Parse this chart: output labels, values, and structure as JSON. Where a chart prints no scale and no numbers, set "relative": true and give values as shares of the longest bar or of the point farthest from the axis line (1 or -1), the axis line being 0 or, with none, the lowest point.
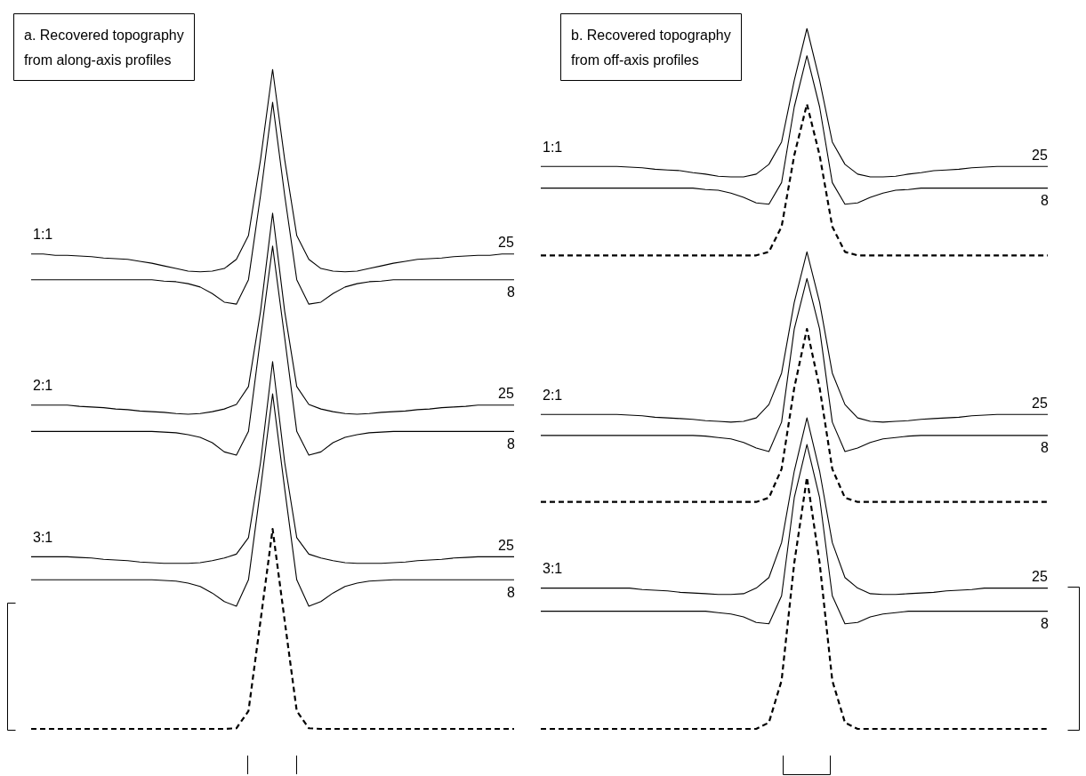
{
  "chart_data": [
    {
      "type": "line",
      "title": "a. Recovered topography\nfrom along-axis profiles",
      "relative": true,
      "marker": "none",
      "line_style": "solid",
      "categories": [
        null,
        null,
        null,
        null,
        null,
        null,
        null,
        null,
        null,
        null,
        null,
        null,
        null,
        null,
        null,
        null,
        null,
        null,
        null,
        null,
        null,
        null,
        null,
        null,
        null,
        null,
        null,
        null,
        null,
        null,
        null,
        null,
        null,
        null,
        null,
        null,
        null,
        null,
        null,
        null,
        null
      ],
      "annotations": [
        {
          "text": "1:1",
          "y": 0.72
        },
        {
          "text": "2:1",
          "y": 0.491
        },
        {
          "text": "3:1",
          "y": 0.261
        }
      ],
      "series": [
        {
          "name": "25",
          "color": "#000000",
          "values": [
            0.72,
            0.72,
            0.718,
            0.718,
            0.717,
            0.716,
            0.714,
            0.713,
            0.712,
            0.709,
            0.706,
            0.702,
            0.698,
            0.694,
            0.693,
            0.694,
            0.698,
            0.712,
            0.748,
            0.863,
            1,
            0.863,
            0.748,
            0.712,
            0.698,
            0.694,
            0.693,
            0.694,
            0.698,
            0.702,
            0.706,
            0.709,
            0.712,
            0.713,
            0.714,
            0.716,
            0.717,
            0.718,
            0.718,
            0.72,
            0.72
          ]
        },
        {
          "name": "8",
          "color": "#000000",
          "values": [
            0.681,
            0.681,
            0.681,
            0.681,
            0.681,
            0.681,
            0.681,
            0.681,
            0.681,
            0.681,
            0.681,
            0.679,
            0.678,
            0.675,
            0.67,
            0.66,
            0.647,
            0.644,
            0.681,
            0.809,
            0.95,
            0.809,
            0.681,
            0.644,
            0.647,
            0.66,
            0.67,
            0.675,
            0.678,
            0.679,
            0.681,
            0.681,
            0.681,
            0.681,
            0.681,
            0.681,
            0.681,
            0.681,
            0.681,
            0.681,
            0.681
          ]
        },
        {
          "name": "25",
          "color": "#000000",
          "values": [
            0.491,
            0.491,
            0.491,
            0.491,
            0.489,
            0.488,
            0.487,
            0.485,
            0.484,
            0.482,
            0.481,
            0.48,
            0.478,
            0.477,
            0.478,
            0.481,
            0.485,
            0.492,
            0.519,
            0.633,
            0.782,
            0.633,
            0.519,
            0.492,
            0.485,
            0.481,
            0.478,
            0.477,
            0.478,
            0.48,
            0.481,
            0.482,
            0.484,
            0.485,
            0.487,
            0.488,
            0.489,
            0.491,
            0.491,
            0.491,
            0.491
          ]
        },
        {
          "name": "8",
          "color": "#000000",
          "values": [
            0.451,
            0.451,
            0.451,
            0.451,
            0.451,
            0.451,
            0.451,
            0.451,
            0.451,
            0.451,
            0.451,
            0.45,
            0.449,
            0.446,
            0.442,
            0.434,
            0.42,
            0.415,
            0.451,
            0.593,
            0.732,
            0.593,
            0.451,
            0.415,
            0.42,
            0.434,
            0.442,
            0.446,
            0.449,
            0.45,
            0.451,
            0.451,
            0.451,
            0.451,
            0.451,
            0.451,
            0.451,
            0.451,
            0.451,
            0.451,
            0.451
          ]
        },
        {
          "name": "25",
          "color": "#000000",
          "values": [
            0.261,
            0.261,
            0.261,
            0.261,
            0.26,
            0.259,
            0.257,
            0.256,
            0.255,
            0.253,
            0.252,
            0.251,
            0.251,
            0.251,
            0.252,
            0.255,
            0.259,
            0.265,
            0.29,
            0.404,
            0.557,
            0.404,
            0.29,
            0.265,
            0.259,
            0.255,
            0.252,
            0.251,
            0.251,
            0.251,
            0.252,
            0.253,
            0.255,
            0.256,
            0.257,
            0.259,
            0.26,
            0.261,
            0.261,
            0.261,
            0.261
          ]
        },
        {
          "name": "8",
          "color": "#000000",
          "values": [
            0.226,
            0.226,
            0.226,
            0.226,
            0.226,
            0.226,
            0.226,
            0.226,
            0.226,
            0.226,
            0.226,
            0.225,
            0.224,
            0.221,
            0.216,
            0.206,
            0.193,
            0.186,
            0.226,
            0.364,
            0.508,
            0.364,
            0.226,
            0.186,
            0.193,
            0.206,
            0.216,
            0.221,
            0.224,
            0.225,
            0.226,
            0.226,
            0.226,
            0.226,
            0.226,
            0.226,
            0.226,
            0.226,
            0.226,
            0.226,
            0.226
          ]
        },
        {
          "color": "#000000",
          "line_style": "dashed",
          "values": [
            0,
            0,
            0,
            0,
            0,
            0,
            0,
            0,
            0,
            0,
            0,
            0,
            0,
            0,
            0,
            0,
            0,
            0.001,
            0.027,
            0.164,
            0.303,
            0.164,
            0.027,
            0.001,
            0,
            0,
            0,
            0,
            0,
            0,
            0,
            0,
            0,
            0,
            0,
            0,
            0,
            0,
            0,
            0,
            0
          ]
        }
      ]
    },
    {
      "type": "line",
      "title": "b. Recovered topography\nfrom off-axis profiles",
      "relative": true,
      "marker": "none",
      "line_style": "solid",
      "categories": [
        null,
        null,
        null,
        null,
        null,
        null,
        null,
        null,
        null,
        null,
        null,
        null,
        null,
        null,
        null,
        null,
        null,
        null,
        null,
        null,
        null,
        null,
        null,
        null,
        null,
        null,
        null,
        null,
        null,
        null,
        null,
        null,
        null,
        null,
        null,
        null,
        null,
        null,
        null,
        null,
        null
      ],
      "annotations": [
        {
          "text": "1:1",
          "y": 0.803
        },
        {
          "text": "2:1",
          "y": 0.449
        },
        {
          "text": "3:1",
          "y": 0.201
        }
      ],
      "series": [
        {
          "name": "25",
          "color": "#000000",
          "values": [
            0.803,
            0.803,
            0.803,
            0.803,
            0.803,
            0.803,
            0.803,
            0.802,
            0.801,
            0.799,
            0.798,
            0.797,
            0.794,
            0.792,
            0.789,
            0.788,
            0.788,
            0.792,
            0.806,
            0.838,
            0.926,
            1,
            0.926,
            0.838,
            0.806,
            0.792,
            0.788,
            0.788,
            0.789,
            0.792,
            0.794,
            0.797,
            0.798,
            0.799,
            0.801,
            0.802,
            0.803,
            0.803,
            0.803,
            0.803,
            0.803
          ]
        },
        {
          "name": "8",
          "color": "#000000",
          "values": [
            0.772,
            0.772,
            0.772,
            0.772,
            0.772,
            0.772,
            0.772,
            0.772,
            0.772,
            0.772,
            0.772,
            0.772,
            0.772,
            0.77,
            0.769,
            0.765,
            0.759,
            0.751,
            0.749,
            0.78,
            0.888,
            0.961,
            0.888,
            0.78,
            0.749,
            0.751,
            0.759,
            0.765,
            0.769,
            0.77,
            0.772,
            0.772,
            0.772,
            0.772,
            0.772,
            0.772,
            0.772,
            0.772,
            0.772,
            0.772,
            0.772
          ]
        },
        {
          "color": "#000000",
          "line_style": "dashed",
          "values": [
            0.676,
            0.676,
            0.676,
            0.676,
            0.676,
            0.676,
            0.676,
            0.676,
            0.676,
            0.676,
            0.676,
            0.676,
            0.676,
            0.676,
            0.676,
            0.676,
            0.676,
            0.676,
            0.681,
            0.717,
            0.819,
            0.892,
            0.819,
            0.717,
            0.681,
            0.676,
            0.676,
            0.676,
            0.676,
            0.676,
            0.676,
            0.676,
            0.676,
            0.676,
            0.676,
            0.676,
            0.676,
            0.676,
            0.676,
            0.676,
            0.676
          ]
        },
        {
          "name": "25",
          "color": "#000000",
          "values": [
            0.449,
            0.449,
            0.449,
            0.449,
            0.449,
            0.449,
            0.449,
            0.448,
            0.447,
            0.445,
            0.444,
            0.443,
            0.442,
            0.44,
            0.439,
            0.438,
            0.439,
            0.444,
            0.463,
            0.508,
            0.609,
            0.681,
            0.609,
            0.508,
            0.463,
            0.444,
            0.439,
            0.438,
            0.439,
            0.44,
            0.442,
            0.443,
            0.444,
            0.445,
            0.447,
            0.448,
            0.449,
            0.449,
            0.449,
            0.449,
            0.449
          ]
        },
        {
          "name": "8",
          "color": "#000000",
          "values": [
            0.419,
            0.419,
            0.419,
            0.419,
            0.419,
            0.419,
            0.419,
            0.419,
            0.419,
            0.419,
            0.419,
            0.419,
            0.419,
            0.418,
            0.416,
            0.414,
            0.409,
            0.401,
            0.396,
            0.438,
            0.571,
            0.643,
            0.571,
            0.438,
            0.396,
            0.401,
            0.409,
            0.414,
            0.416,
            0.418,
            0.419,
            0.419,
            0.419,
            0.419,
            0.419,
            0.419,
            0.419,
            0.419,
            0.419,
            0.419,
            0.419
          ]
        },
        {
          "color": "#000000",
          "line_style": "dashed",
          "values": [
            0.324,
            0.324,
            0.324,
            0.324,
            0.324,
            0.324,
            0.324,
            0.324,
            0.324,
            0.324,
            0.324,
            0.324,
            0.324,
            0.324,
            0.324,
            0.324,
            0.324,
            0.324,
            0.33,
            0.371,
            0.487,
            0.571,
            0.487,
            0.371,
            0.33,
            0.324,
            0.324,
            0.324,
            0.324,
            0.324,
            0.324,
            0.324,
            0.324,
            0.324,
            0.324,
            0.324,
            0.324,
            0.324,
            0.324,
            0.324,
            0.324
          ]
        },
        {
          "name": "25",
          "color": "#000000",
          "values": [
            0.201,
            0.201,
            0.201,
            0.201,
            0.201,
            0.201,
            0.201,
            0.201,
            0.199,
            0.198,
            0.197,
            0.195,
            0.194,
            0.193,
            0.192,
            0.192,
            0.193,
            0.201,
            0.216,
            0.266,
            0.368,
            0.444,
            0.368,
            0.266,
            0.216,
            0.201,
            0.193,
            0.192,
            0.192,
            0.193,
            0.194,
            0.195,
            0.197,
            0.198,
            0.199,
            0.201,
            0.201,
            0.201,
            0.201,
            0.201,
            0.201
          ]
        },
        {
          "name": "8",
          "color": "#000000",
          "values": [
            0.168,
            0.168,
            0.168,
            0.168,
            0.168,
            0.168,
            0.168,
            0.168,
            0.168,
            0.168,
            0.168,
            0.168,
            0.168,
            0.168,
            0.166,
            0.164,
            0.16,
            0.152,
            0.15,
            0.19,
            0.33,
            0.406,
            0.33,
            0.19,
            0.15,
            0.152,
            0.16,
            0.164,
            0.166,
            0.168,
            0.168,
            0.168,
            0.168,
            0.168,
            0.168,
            0.168,
            0.168,
            0.168,
            0.168,
            0.168,
            0.168
          ]
        },
        {
          "color": "#000000",
          "line_style": "dashed",
          "values": [
            0,
            0,
            0,
            0,
            0,
            0,
            0,
            0,
            0,
            0,
            0,
            0,
            0,
            0,
            0,
            0,
            0,
            0,
            0.009,
            0.069,
            0.237,
            0.359,
            0.237,
            0.069,
            0.009,
            0,
            0,
            0,
            0,
            0,
            0,
            0,
            0,
            0,
            0,
            0,
            0,
            0,
            0,
            0,
            0
          ]
        }
      ]
    }
  ]
}
